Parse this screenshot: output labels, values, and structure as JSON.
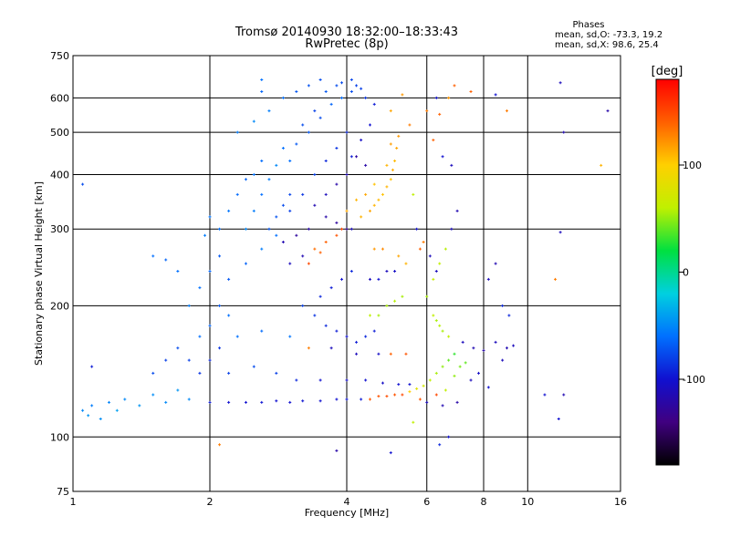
{
  "chart_data": {
    "type": "scatter",
    "title": "Tromsø 20140930 18:32:00–18:33:43",
    "subtitle": "RwPretec (8p)",
    "xlabel": "Frequency [MHz]",
    "ylabel": "Stationary phase Virtual Height [km]",
    "x_scale": "log",
    "y_scale": "log",
    "xlim": [
      1,
      16
    ],
    "ylim": [
      75,
      750
    ],
    "x_ticks": [
      1,
      2,
      4,
      6,
      8,
      10,
      16
    ],
    "x_tick_labels": [
      "1",
      "2",
      "4",
      "6",
      "8",
      "10",
      "16"
    ],
    "y_ticks": [
      75,
      100,
      200,
      300,
      400,
      500,
      600,
      750
    ],
    "y_tick_labels": [
      "75",
      "100",
      "200",
      "300",
      "400",
      "500",
      "600",
      "750"
    ],
    "grid": true,
    "phase_stats": {
      "heading": "Phases",
      "line_o": "mean, sd,O: -73.3, 19.2",
      "line_x": "mean, sd,X:  98.6, 25.4"
    },
    "colorbar": {
      "label": "[deg]",
      "range": [
        -180,
        180
      ],
      "ticks": [
        100,
        0,
        -100
      ],
      "tick_labels": [
        "100",
        "0",
        "-100"
      ],
      "colormap": [
        "#000000",
        "#400080",
        "#1010d0",
        "#0070ff",
        "#00d0e0",
        "#00e040",
        "#c0f000",
        "#ffd000",
        "#ff6000",
        "#ff0000"
      ]
    },
    "point_color_range": [
      -180,
      180
    ],
    "points": [
      [
        1.05,
        115,
        -50
      ],
      [
        1.08,
        112,
        -45
      ],
      [
        1.1,
        118,
        -55
      ],
      [
        1.15,
        110,
        -48
      ],
      [
        1.2,
        120,
        -52
      ],
      [
        1.25,
        115,
        -40
      ],
      [
        1.3,
        122,
        -50
      ],
      [
        1.4,
        118,
        -45
      ],
      [
        1.5,
        125,
        -48
      ],
      [
        1.6,
        120,
        -50
      ],
      [
        1.7,
        128,
        -45
      ],
      [
        1.8,
        122,
        -50
      ],
      [
        1.1,
        145,
        -95
      ],
      [
        1.05,
        380,
        -75
      ],
      [
        1.9,
        170,
        -60
      ],
      [
        2.0,
        180,
        -65
      ],
      [
        2.1,
        200,
        -70
      ],
      [
        2.2,
        190,
        -60
      ],
      [
        2.0,
        120,
        -95
      ],
      [
        2.2,
        120,
        -100
      ],
      [
        2.4,
        120,
        -100
      ],
      [
        2.6,
        120,
        -98
      ],
      [
        2.8,
        121,
        -100
      ],
      [
        3.0,
        120,
        -100
      ],
      [
        3.2,
        121,
        -98
      ],
      [
        3.5,
        121,
        -100
      ],
      [
        3.8,
        122,
        -100
      ],
      [
        4.0,
        122,
        -98
      ],
      [
        4.3,
        122,
        -95
      ],
      [
        4.5,
        122,
        142
      ],
      [
        4.7,
        124,
        145
      ],
      [
        4.9,
        124,
        148
      ],
      [
        5.1,
        125,
        145
      ],
      [
        5.3,
        125,
        150
      ],
      [
        5.5,
        127,
        100
      ],
      [
        5.7,
        129,
        80
      ],
      [
        5.9,
        131,
        70
      ],
      [
        6.1,
        135,
        60
      ],
      [
        6.3,
        140,
        55
      ],
      [
        6.5,
        145,
        50
      ],
      [
        6.7,
        150,
        40
      ],
      [
        6.9,
        155,
        30
      ],
      [
        2.5,
        145,
        -75
      ],
      [
        2.8,
        140,
        -80
      ],
      [
        3.1,
        135,
        -90
      ],
      [
        3.5,
        135,
        -100
      ],
      [
        4.0,
        135,
        -105
      ],
      [
        4.4,
        135,
        -100
      ],
      [
        4.8,
        133,
        -105
      ],
      [
        5.2,
        132,
        -100
      ],
      [
        5.5,
        132,
        -100
      ],
      [
        2.3,
        170,
        -60
      ],
      [
        2.6,
        175,
        -62
      ],
      [
        3.0,
        170,
        -58
      ],
      [
        3.3,
        160,
        130
      ],
      [
        3.7,
        160,
        -110
      ],
      [
        4.2,
        155,
        -110
      ],
      [
        4.7,
        155,
        -105
      ],
      [
        5.0,
        155,
        140
      ],
      [
        5.4,
        155,
        145
      ],
      [
        2.2,
        230,
        -70
      ],
      [
        2.4,
        250,
        -65
      ],
      [
        2.6,
        270,
        -55
      ],
      [
        2.8,
        290,
        -60
      ],
      [
        3.0,
        250,
        -110
      ],
      [
        3.2,
        260,
        -115
      ],
      [
        3.4,
        270,
        135
      ],
      [
        3.6,
        280,
        140
      ],
      [
        3.8,
        290,
        145
      ],
      [
        3.9,
        300,
        150
      ],
      [
        3.3,
        250,
        150
      ],
      [
        3.5,
        265,
        140
      ],
      [
        4.1,
        300,
        -110
      ],
      [
        4.3,
        320,
        110
      ],
      [
        4.5,
        330,
        115
      ],
      [
        4.6,
        340,
        110
      ],
      [
        4.7,
        350,
        108
      ],
      [
        4.8,
        360,
        105
      ],
      [
        4.9,
        375,
        110
      ],
      [
        5.0,
        390,
        105
      ],
      [
        5.05,
        410,
        112
      ],
      [
        5.1,
        430,
        108
      ],
      [
        5.15,
        460,
        115
      ],
      [
        5.2,
        490,
        120
      ],
      [
        4.4,
        360,
        115
      ],
      [
        4.2,
        350,
        110
      ],
      [
        4.0,
        330,
        115
      ],
      [
        4.6,
        380,
        105
      ],
      [
        4.9,
        420,
        110
      ],
      [
        5.0,
        470,
        118
      ],
      [
        3.0,
        330,
        -80
      ],
      [
        3.2,
        360,
        -85
      ],
      [
        3.4,
        400,
        -80
      ],
      [
        3.6,
        430,
        -90
      ],
      [
        3.8,
        460,
        -85
      ],
      [
        4.0,
        500,
        -90
      ],
      [
        3.3,
        500,
        -70
      ],
      [
        3.5,
        540,
        -75
      ],
      [
        3.7,
        580,
        -65
      ],
      [
        3.9,
        600,
        -60
      ],
      [
        4.1,
        620,
        -75
      ],
      [
        4.3,
        630,
        -80
      ],
      [
        2.4,
        300,
        -50
      ],
      [
        2.5,
        330,
        -55
      ],
      [
        2.6,
        360,
        -60
      ],
      [
        2.7,
        390,
        -55
      ],
      [
        2.8,
        420,
        -50
      ],
      [
        2.9,
        460,
        -60
      ],
      [
        2.3,
        500,
        -55
      ],
      [
        2.5,
        530,
        -50
      ],
      [
        2.7,
        560,
        -55
      ],
      [
        2.9,
        600,
        -60
      ],
      [
        2.6,
        620,
        -65
      ],
      [
        4.4,
        420,
        -120
      ],
      [
        4.2,
        440,
        -125
      ],
      [
        4.0,
        400,
        -115
      ],
      [
        3.8,
        380,
        -120
      ],
      [
        3.6,
        360,
        -110
      ],
      [
        3.4,
        340,
        -115
      ],
      [
        4.5,
        230,
        -110
      ],
      [
        4.7,
        230,
        -100
      ],
      [
        4.9,
        240,
        -110
      ],
      [
        5.1,
        240,
        -105
      ],
      [
        4.6,
        270,
        120
      ],
      [
        4.8,
        270,
        125
      ],
      [
        5.2,
        260,
        115
      ],
      [
        5.4,
        250,
        110
      ],
      [
        4.5,
        190,
        60
      ],
      [
        4.7,
        190,
        55
      ],
      [
        4.9,
        200,
        55
      ],
      [
        5.1,
        205,
        58
      ],
      [
        5.3,
        210,
        55
      ],
      [
        6.2,
        190,
        60
      ],
      [
        6.3,
        185,
        55
      ],
      [
        6.4,
        180,
        58
      ],
      [
        6.5,
        175,
        55
      ],
      [
        6.7,
        170,
        60
      ],
      [
        7.2,
        165,
        -110
      ],
      [
        7.6,
        160,
        -115
      ],
      [
        8.0,
        158,
        -120
      ],
      [
        8.5,
        165,
        -110
      ],
      [
        9.0,
        160,
        -115
      ],
      [
        9.3,
        162,
        -110
      ],
      [
        8.8,
        150,
        -110
      ],
      [
        6.0,
        210,
        55
      ],
      [
        6.2,
        230,
        65
      ],
      [
        6.4,
        250,
        60
      ],
      [
        6.6,
        270,
        58
      ],
      [
        6.8,
        300,
        -110
      ],
      [
        7.0,
        330,
        -115
      ],
      [
        6.9,
        640,
        140
      ],
      [
        7.5,
        620,
        140
      ],
      [
        6.3,
        600,
        -100
      ],
      [
        8.5,
        610,
        -100
      ],
      [
        9.0,
        560,
        130
      ],
      [
        11.8,
        650,
        -110
      ],
      [
        15.0,
        560,
        -120
      ],
      [
        12.0,
        500,
        -115
      ],
      [
        14.5,
        420,
        110
      ],
      [
        11.8,
        295,
        -110
      ],
      [
        11.5,
        230,
        130
      ],
      [
        12.0,
        125,
        -115
      ],
      [
        11.7,
        110,
        -100
      ],
      [
        10.9,
        125,
        -100
      ],
      [
        8.2,
        230,
        -110
      ],
      [
        8.5,
        250,
        -115
      ],
      [
        8.8,
        200,
        -90
      ],
      [
        9.1,
        190,
        -90
      ],
      [
        6.7,
        600,
        120
      ],
      [
        6.4,
        550,
        140
      ],
      [
        6.0,
        560,
        130
      ],
      [
        6.2,
        480,
        140
      ],
      [
        6.5,
        440,
        -100
      ],
      [
        6.8,
        420,
        -110
      ],
      [
        5.3,
        610,
        120
      ],
      [
        5.0,
        560,
        115
      ],
      [
        5.5,
        520,
        130
      ],
      [
        5.6,
        360,
        60
      ],
      [
        5.7,
        300,
        -100
      ],
      [
        5.8,
        270,
        140
      ],
      [
        5.9,
        280,
        130
      ],
      [
        6.1,
        260,
        -110
      ],
      [
        6.3,
        240,
        -110
      ],
      [
        1.8,
        200,
        -55
      ],
      [
        1.9,
        220,
        -60
      ],
      [
        2.0,
        240,
        -65
      ],
      [
        2.1,
        260,
        -70
      ],
      [
        1.7,
        240,
        -60
      ],
      [
        1.6,
        255,
        -65
      ],
      [
        1.5,
        260,
        -60
      ],
      [
        1.5,
        140,
        -75
      ],
      [
        1.6,
        150,
        -80
      ],
      [
        1.7,
        160,
        -75
      ],
      [
        1.8,
        150,
        -80
      ],
      [
        1.9,
        140,
        -85
      ],
      [
        2.0,
        150,
        -90
      ],
      [
        2.1,
        160,
        -85
      ],
      [
        2.2,
        140,
        -80
      ],
      [
        3.0,
        430,
        -60
      ],
      [
        3.1,
        470,
        -70
      ],
      [
        3.2,
        520,
        -75
      ],
      [
        3.4,
        560,
        -80
      ],
      [
        3.6,
        620,
        -70
      ],
      [
        3.8,
        640,
        -75
      ],
      [
        4.2,
        640,
        -80
      ],
      [
        4.4,
        600,
        -85
      ],
      [
        4.6,
        580,
        -95
      ],
      [
        4.5,
        520,
        -100
      ],
      [
        4.3,
        480,
        -105
      ],
      [
        4.1,
        440,
        -95
      ],
      [
        3.3,
        300,
        -120
      ],
      [
        3.1,
        290,
        -125
      ],
      [
        2.9,
        280,
        -115
      ],
      [
        3.6,
        320,
        -120
      ],
      [
        3.8,
        310,
        -125
      ],
      [
        4.0,
        300,
        -130
      ],
      [
        3.5,
        210,
        -90
      ],
      [
        3.7,
        220,
        -95
      ],
      [
        3.9,
        230,
        -100
      ],
      [
        4.1,
        240,
        -90
      ],
      [
        3.2,
        200,
        -80
      ],
      [
        3.4,
        190,
        -85
      ],
      [
        3.6,
        180,
        -90
      ],
      [
        3.8,
        175,
        -95
      ],
      [
        4.0,
        170,
        -100
      ],
      [
        4.2,
        165,
        -95
      ],
      [
        4.4,
        170,
        -90
      ],
      [
        4.6,
        175,
        -95
      ],
      [
        2.7,
        300,
        -70
      ],
      [
        2.8,
        320,
        -72
      ],
      [
        2.9,
        340,
        -75
      ],
      [
        3.0,
        360,
        -78
      ],
      [
        2.5,
        400,
        -60
      ],
      [
        2.6,
        430,
        -62
      ],
      [
        2.2,
        330,
        -58
      ],
      [
        2.3,
        360,
        -62
      ],
      [
        2.4,
        390,
        -65
      ],
      [
        2.1,
        300,
        -60
      ],
      [
        1.95,
        290,
        -55
      ],
      [
        2.0,
        320,
        -58
      ],
      [
        3.1,
        620,
        -70
      ],
      [
        3.3,
        640,
        -72
      ],
      [
        3.5,
        660,
        -74
      ],
      [
        3.9,
        650,
        -76
      ],
      [
        4.1,
        660,
        -78
      ],
      [
        2.6,
        660,
        -60
      ],
      [
        6.0,
        120,
        -110
      ],
      [
        6.5,
        118,
        -115
      ],
      [
        7.0,
        120,
        -120
      ],
      [
        5.8,
        122,
        145
      ],
      [
        6.3,
        125,
        150
      ],
      [
        6.6,
        128,
        60
      ],
      [
        6.9,
        138,
        50
      ],
      [
        7.1,
        145,
        45
      ],
      [
        7.3,
        148,
        40
      ],
      [
        7.5,
        135,
        -110
      ],
      [
        7.8,
        140,
        -105
      ],
      [
        8.2,
        130,
        -100
      ],
      [
        5.0,
        92,
        -100
      ],
      [
        6.4,
        96,
        -90
      ],
      [
        2.1,
        96,
        130
      ],
      [
        3.8,
        93,
        -120
      ],
      [
        5.6,
        108,
        60
      ],
      [
        6.7,
        100,
        -100
      ]
    ]
  }
}
